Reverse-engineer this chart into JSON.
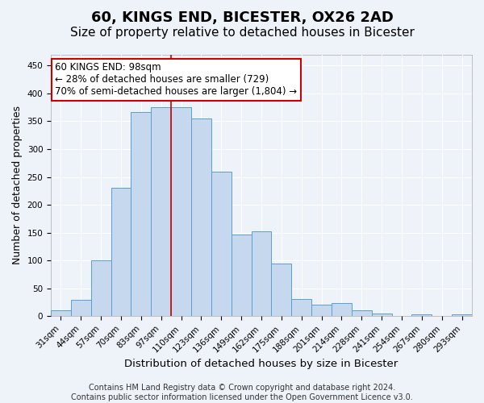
{
  "title1": "60, KINGS END, BICESTER, OX26 2AD",
  "title2": "Size of property relative to detached houses in Bicester",
  "xlabel": "Distribution of detached houses by size in Bicester",
  "ylabel": "Number of detached properties",
  "footnote1": "Contains HM Land Registry data © Crown copyright and database right 2024.",
  "footnote2": "Contains public sector information licensed under the Open Government Licence v3.0.",
  "annotation_line1": "60 KINGS END: 98sqm",
  "annotation_line2": "← 28% of detached houses are smaller (729)",
  "annotation_line3": "70% of semi-detached houses are larger (1,804) →",
  "bar_labels": [
    "31sqm",
    "44sqm",
    "57sqm",
    "70sqm",
    "83sqm",
    "97sqm",
    "110sqm",
    "123sqm",
    "136sqm",
    "149sqm",
    "162sqm",
    "175sqm",
    "188sqm",
    "201sqm",
    "214sqm",
    "228sqm",
    "241sqm",
    "254sqm",
    "267sqm",
    "280sqm",
    "293sqm"
  ],
  "bar_values": [
    11,
    29,
    100,
    230,
    367,
    375,
    375,
    355,
    260,
    146,
    153,
    95,
    31,
    21,
    23,
    11,
    5,
    0,
    4,
    0,
    4
  ],
  "bar_color": "#c5d8ed",
  "bar_edge_color": "#5a9fd4",
  "vline_x": 5.5,
  "vline_color": "#cc0000",
  "ylim": [
    0,
    470
  ],
  "yticks": [
    0,
    50,
    100,
    150,
    200,
    250,
    300,
    350,
    400,
    450
  ],
  "annot_box_color": "#ffffff",
  "annot_box_edge": "#cc0000",
  "bg_color": "#eef3f9",
  "grid_color": "#ffffff",
  "title1_fontsize": 13,
  "title2_fontsize": 11,
  "xlabel_fontsize": 9.5,
  "ylabel_fontsize": 9,
  "tick_fontsize": 7.5,
  "annot_fontsize": 8.5,
  "footnote_fontsize": 7
}
